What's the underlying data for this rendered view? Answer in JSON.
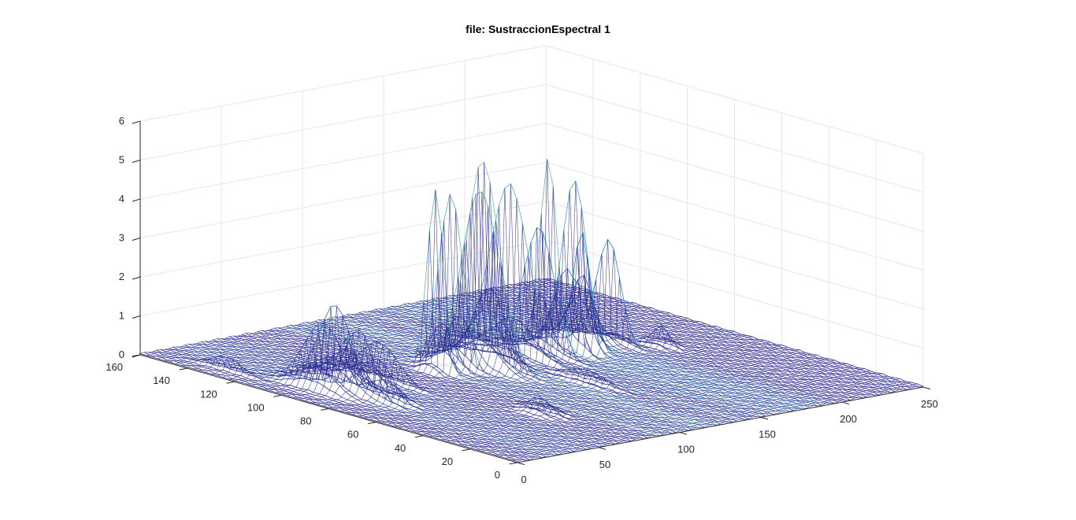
{
  "chart_data": {
    "type": "surface-mesh",
    "title": "file: SustraccionEspectral 1",
    "xlabel": "",
    "ylabel": "",
    "zlabel": "",
    "xlim": [
      0,
      250
    ],
    "ylim": [
      0,
      160
    ],
    "zlim": [
      0,
      6
    ],
    "x_ticks": [
      "0",
      "50",
      "100",
      "150",
      "200",
      "250"
    ],
    "y_ticks": [
      "0",
      "20",
      "40",
      "60",
      "80",
      "100",
      "120",
      "140",
      "160"
    ],
    "z_ticks": [
      "0",
      "1",
      "2",
      "3",
      "4",
      "5",
      "6"
    ],
    "grid": true,
    "colormap": "parula",
    "mesh_color_low": "#2e2a8e",
    "mesh_color_high": "#f2e83a",
    "peaks": [
      {
        "x": 88,
        "y": 95,
        "z": 5.1
      },
      {
        "x": 100,
        "y": 97,
        "z": 4.4
      },
      {
        "x": 118,
        "y": 96,
        "z": 5.0
      },
      {
        "x": 138,
        "y": 98,
        "z": 4.8
      },
      {
        "x": 160,
        "y": 97,
        "z": 4.9
      },
      {
        "x": 178,
        "y": 98,
        "z": 4.5
      },
      {
        "x": 150,
        "y": 94,
        "z": 3.2
      },
      {
        "x": 112,
        "y": 90,
        "z": 3.0
      },
      {
        "x": 168,
        "y": 88,
        "z": 3.3
      },
      {
        "x": 190,
        "y": 92,
        "z": 2.6
      },
      {
        "x": 38,
        "y": 103,
        "z": 2.1
      },
      {
        "x": 22,
        "y": 98,
        "z": 1.8
      },
      {
        "x": 25,
        "y": 90,
        "z": 1.2
      },
      {
        "x": 48,
        "y": 100,
        "z": 1.4
      },
      {
        "x": 30,
        "y": 80,
        "z": 1.0
      },
      {
        "x": 55,
        "y": 96,
        "z": 0.9
      },
      {
        "x": 205,
        "y": 80,
        "z": 0.5
      },
      {
        "x": 72,
        "y": 40,
        "z": 0.4
      },
      {
        "x": 10,
        "y": 130,
        "z": 0.35
      },
      {
        "x": 130,
        "y": 60,
        "z": 0.3
      }
    ]
  }
}
